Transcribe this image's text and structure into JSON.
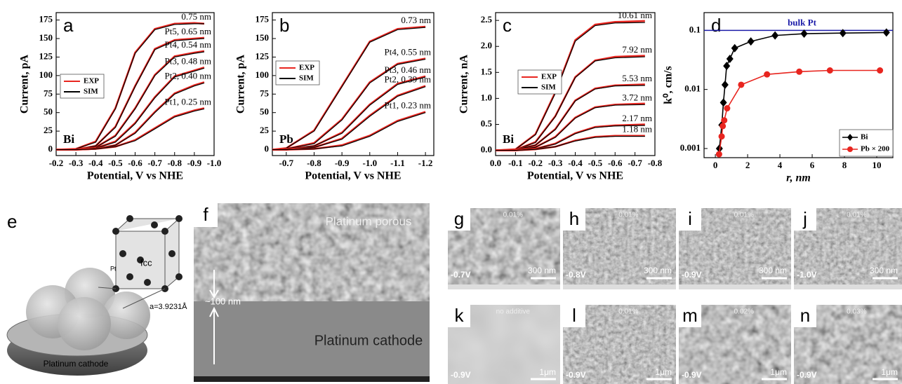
{
  "chart_data": [
    {
      "type": "line",
      "panel_label": "a",
      "annotation": "Bi",
      "xlabel": "Potential, V vs NHE",
      "ylabel": "Current, pA",
      "xlim": [
        -0.2,
        -1.0
      ],
      "ylim": [
        -8,
        185
      ],
      "xticks": [
        -0.2,
        -0.3,
        -0.4,
        -0.5,
        -0.6,
        -0.7,
        -0.8,
        -0.9,
        {
          "value": -1.0,
          "label": "-1.0"
        }
      ],
      "yticks": [
        0,
        25,
        50,
        75,
        100,
        125,
        150,
        175
      ],
      "series": [
        {
          "name": "EXP",
          "color": "#e8251f"
        },
        {
          "name": "SIM",
          "color": "#000000"
        }
      ],
      "x": [
        -0.2,
        -0.3,
        -0.4,
        -0.5,
        -0.6,
        -0.7,
        -0.8,
        -0.9,
        -0.95
      ],
      "curves": [
        {
          "label": "0.75 nm",
          "values": [
            [
              0,
              1,
              11,
              56,
              131,
              163,
              170,
              171,
              170
            ],
            [
              0,
              1,
              10,
              55,
              130,
              162,
              169,
              170,
              170
            ]
          ]
        },
        {
          "label": "Pt5, 0.65 nm",
          "values": [
            [
              0,
              0,
              5,
              31,
              86,
              136,
              148,
              150,
              151
            ],
            [
              0,
              0,
              5,
              30,
              85,
              135,
              147,
              149,
              150
            ]
          ]
        },
        {
          "label": "Pt4, 0.54 nm",
          "values": [
            [
              0,
              0,
              3,
              19,
              56,
              101,
              126,
              131,
              133
            ],
            [
              0,
              0,
              3,
              18,
              55,
              100,
              125,
              130,
              132
            ]
          ]
        },
        {
          "label": "Pt3, 0.48 nm",
          "values": [
            [
              0,
              0,
              2,
              11,
              36,
              71,
              99,
              107,
              111
            ],
            [
              0,
              0,
              2,
              10,
              35,
              70,
              98,
              106,
              110
            ]
          ]
        },
        {
          "label": "Pt2, 0.40 nm",
          "values": [
            [
              0,
              0,
              1,
              6,
              23,
              51,
              76,
              87,
              91
            ],
            [
              0,
              0,
              1,
              6,
              22,
              50,
              75,
              86,
              90
            ]
          ]
        },
        {
          "label": "Pt1, 0.25 nm",
          "values": [
            [
              0,
              0,
              1,
              4,
              13,
              29,
              45,
              53,
              56
            ],
            [
              0,
              0,
              1,
              4,
              12,
              28,
              44,
              52,
              55
            ]
          ]
        }
      ]
    },
    {
      "type": "line",
      "panel_label": "b",
      "annotation": "Pb",
      "xlabel": "Potential, V vs NHE",
      "ylabel": "Current, pA",
      "xlim": [
        -0.65,
        -1.23
      ],
      "ylim": [
        -8,
        185
      ],
      "xticks": [
        -0.7,
        -0.8,
        -0.9,
        {
          "value": -1.0,
          "label": "-1.0"
        },
        -1.1,
        -1.2
      ],
      "yticks": [
        0,
        25,
        50,
        75,
        100,
        125,
        150,
        175
      ],
      "series": [
        {
          "name": "EXP",
          "color": "#e8251f"
        },
        {
          "name": "SIM",
          "color": "#000000"
        }
      ],
      "x": [
        -0.65,
        -0.7,
        -0.8,
        -0.9,
        -1.0,
        -1.1,
        -1.2
      ],
      "curves": [
        {
          "label": "0.73 nm",
          "values": [
            [
              0,
              2,
              26,
              86,
              146,
              163,
              166
            ],
            [
              0,
              2,
              25,
              85,
              145,
              162,
              165
            ]
          ]
        },
        {
          "label": "Pt4, 0.55 nm",
          "values": [
            [
              0,
              1,
              9,
              41,
              91,
              116,
              123
            ],
            [
              0,
              1,
              8,
              40,
              90,
              115,
              122
            ]
          ]
        },
        {
          "label": "Pt3, 0.46 nm",
          "values": [
            [
              0,
              0,
              5,
              23,
              61,
              89,
              99
            ],
            [
              0,
              0,
              5,
              22,
              60,
              88,
              98
            ]
          ]
        },
        {
          "label": "Pt2, 0.39 nm",
          "values": [
            [
              0,
              0,
              3,
              15,
              46,
              73,
              86
            ],
            [
              0,
              0,
              3,
              14,
              45,
              72,
              85
            ]
          ]
        },
        {
          "label": "Pt1, 0.23 nm",
          "values": [
            [
              0,
              0,
              1,
              6,
              19,
              39,
              51
            ],
            [
              0,
              0,
              1,
              5,
              18,
              38,
              50
            ]
          ]
        }
      ]
    },
    {
      "type": "line",
      "panel_label": "c",
      "annotation": "Bi",
      "xlabel": "Potential, V vs NHE",
      "ylabel": "Current, nA",
      "xlim": [
        0,
        -0.8
      ],
      "ylim": [
        -0.1,
        2.65
      ],
      "xticks": [
        {
          "value": 0,
          "label": "0.0"
        },
        -0.1,
        -0.2,
        -0.3,
        -0.4,
        -0.5,
        -0.6,
        -0.7,
        -0.8
      ],
      "yticks": [
        {
          "value": 0,
          "label": "0.0"
        },
        0.5,
        {
          "value": 1,
          "label": "1.0"
        },
        1.5,
        {
          "value": 2,
          "label": "2.0"
        },
        2.5
      ],
      "series": [
        {
          "name": "EXP",
          "color": "#e8251f"
        },
        {
          "name": "SIM",
          "color": "#000000"
        }
      ],
      "x": [
        0,
        -0.1,
        -0.2,
        -0.3,
        -0.4,
        -0.5,
        -0.6,
        -0.75
      ],
      "curves": [
        {
          "label": "10.61 nm",
          "values": [
            [
              0,
              0.02,
              0.31,
              1.12,
              2.12,
              2.42,
              2.47,
              2.49
            ],
            [
              0,
              0.02,
              0.3,
              1.1,
              2.1,
              2.4,
              2.45,
              2.46
            ]
          ]
        },
        {
          "label": "7.92 nm",
          "values": [
            [
              0,
              0.01,
              0.16,
              0.66,
              1.41,
              1.73,
              1.8,
              1.82
            ],
            [
              0,
              0.01,
              0.15,
              0.65,
              1.4,
              1.72,
              1.78,
              1.8
            ]
          ]
        },
        {
          "label": "5.53 nm",
          "values": [
            [
              0,
              0.01,
              0.1,
              0.41,
              0.96,
              1.19,
              1.25,
              1.27
            ],
            [
              0,
              0.01,
              0.1,
              0.4,
              0.95,
              1.18,
              1.24,
              1.25
            ]
          ]
        },
        {
          "label": "3.72 nm",
          "values": [
            [
              0,
              0,
              0.06,
              0.26,
              0.63,
              0.83,
              0.88,
              0.9
            ],
            [
              0,
              0,
              0.06,
              0.25,
              0.62,
              0.82,
              0.87,
              0.88
            ]
          ]
        },
        {
          "label": "2.17 nm",
          "values": [
            [
              0,
              0,
              0.03,
              0.13,
              0.33,
              0.45,
              0.48,
              0.5
            ],
            [
              0,
              0,
              0.03,
              0.12,
              0.32,
              0.44,
              0.47,
              0.48
            ]
          ]
        },
        {
          "label": "1.18 nm",
          "values": [
            [
              0,
              0,
              0.02,
              0.07,
              0.19,
              0.26,
              0.28,
              0.28
            ],
            [
              0,
              0,
              0.02,
              0.07,
              0.18,
              0.25,
              0.27,
              0.27
            ]
          ]
        }
      ]
    },
    {
      "type": "scatter",
      "panel_label": "d",
      "xlabel": "r, nm",
      "ylabel": "k⁰, cm/s",
      "ylog": true,
      "xlim": [
        -0.7,
        11
      ],
      "ylim": [
        0.0007,
        0.2
      ],
      "xticks": [
        0,
        2,
        4,
        6,
        8,
        10
      ],
      "yticks": [
        0.001,
        0.01,
        0.1
      ],
      "reference_line": {
        "value": 0.1,
        "label": "bulk Pt",
        "color": "#1b1ba8"
      },
      "series": [
        {
          "name": "Bi",
          "color": "#000000",
          "marker": "diamond",
          "x": [
            0.25,
            0.4,
            0.5,
            0.6,
            0.7,
            0.9,
            1.2,
            2.2,
            3.7,
            5.5,
            7.9,
            10.6
          ],
          "values": [
            0.001,
            0.0025,
            0.006,
            0.012,
            0.025,
            0.033,
            0.05,
            0.065,
            0.082,
            0.088,
            0.09,
            0.092
          ]
        },
        {
          "name": "Pb × 200",
          "color": "#e8251f",
          "marker": "circle",
          "x": [
            0.23,
            0.39,
            0.46,
            0.55,
            0.73,
            1.6,
            3.2,
            5.2,
            7.1,
            10.2
          ],
          "values": [
            0.0008,
            0.0016,
            0.0024,
            0.003,
            0.0048,
            0.012,
            0.018,
            0.02,
            0.021,
            0.021
          ]
        }
      ]
    }
  ],
  "panels": [
    {
      "label": "e",
      "texts": [
        "fcc",
        "Pt",
        "a=3.9231Å",
        "Platinum cathode"
      ]
    },
    {
      "label": "f",
      "texts": [
        "Platinum porous",
        "~100 nm",
        "Platinum  cathode"
      ]
    },
    {
      "label": "g",
      "texts": [
        "0.01%",
        "300 nm",
        "-0.7V"
      ]
    },
    {
      "label": "h",
      "texts": [
        "0.01%",
        "300 nm",
        "-0.8V"
      ]
    },
    {
      "label": "i",
      "texts": [
        "0.01%",
        "300 nm",
        "-0.9V"
      ]
    },
    {
      "label": "j",
      "texts": [
        "0.01%",
        "300 nm",
        "-1.0V"
      ]
    },
    {
      "label": "k",
      "texts": [
        "no additive",
        "1μm",
        "-0.9V"
      ]
    },
    {
      "label": "l",
      "texts": [
        "0.01%",
        "1μm",
        "-0.9V"
      ]
    },
    {
      "label": "m",
      "texts": [
        "0.02%",
        "1μm",
        "-0.9V"
      ]
    },
    {
      "label": "n",
      "texts": [
        "0.03%",
        "1μm",
        "-0.9V"
      ]
    }
  ]
}
